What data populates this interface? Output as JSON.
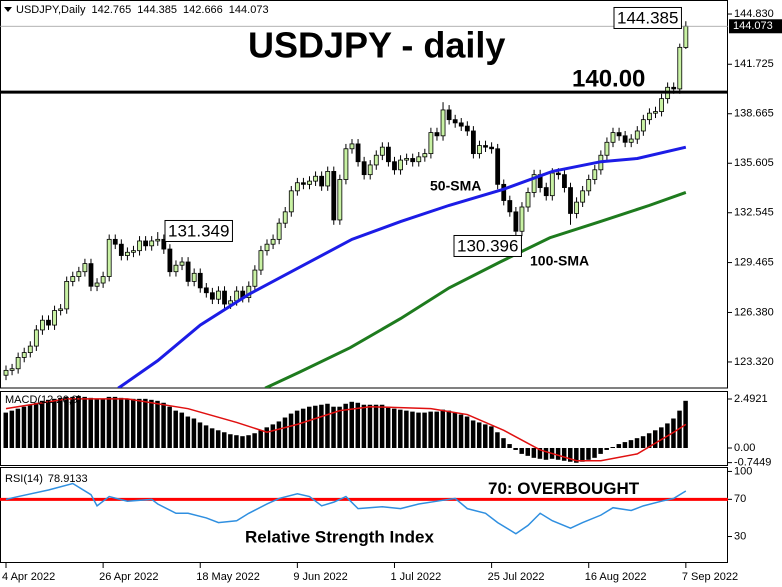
{
  "chart_data": [
    {
      "type": "candlestick",
      "symbol": "USDJPY,Daily",
      "title": "USDJPY - daily",
      "bull_color": "#c9f2a4",
      "bear_color": "#000000",
      "candles": [
        [
          122.5,
          123.1,
          122.2,
          122.8
        ],
        [
          122.8,
          123.2,
          122.5,
          122.9
        ],
        [
          122.9,
          123.9,
          122.6,
          123.6
        ],
        [
          123.6,
          124.2,
          123.3,
          123.9
        ],
        [
          123.9,
          124.6,
          123.6,
          124.3
        ],
        [
          124.3,
          125.6,
          124.0,
          125.3
        ],
        [
          125.3,
          126.2,
          125.0,
          125.9
        ],
        [
          125.9,
          126.2,
          125.3,
          125.6
        ],
        [
          125.6,
          126.8,
          125.3,
          126.5
        ],
        [
          126.5,
          126.9,
          126.2,
          126.6
        ],
        [
          126.6,
          128.6,
          126.3,
          128.3
        ],
        [
          128.3,
          128.9,
          128.0,
          128.6
        ],
        [
          128.6,
          129.2,
          128.3,
          128.9
        ],
        [
          128.9,
          129.7,
          128.6,
          129.4
        ],
        [
          129.4,
          129.7,
          127.7,
          128.0
        ],
        [
          128.0,
          128.5,
          127.7,
          128.2
        ],
        [
          128.2,
          128.9,
          127.9,
          128.6
        ],
        [
          128.6,
          131.2,
          128.3,
          130.9
        ],
        [
          130.9,
          131.2,
          130.3,
          130.6
        ],
        [
          130.6,
          130.9,
          129.6,
          129.9
        ],
        [
          129.9,
          130.4,
          129.6,
          130.1
        ],
        [
          130.1,
          130.5,
          129.8,
          130.2
        ],
        [
          130.2,
          131.1,
          129.9,
          130.8
        ],
        [
          130.8,
          131.1,
          130.2,
          130.5
        ],
        [
          130.5,
          131.1,
          130.2,
          130.8
        ],
        [
          130.8,
          131.349,
          130.5,
          130.9
        ],
        [
          130.9,
          131.2,
          130.0,
          130.3
        ],
        [
          130.3,
          130.6,
          128.6,
          128.9
        ],
        [
          128.9,
          129.6,
          128.6,
          129.3
        ],
        [
          129.3,
          129.8,
          129.0,
          129.5
        ],
        [
          129.5,
          129.8,
          128.0,
          128.3
        ],
        [
          128.3,
          129.1,
          128.0,
          128.8
        ],
        [
          128.8,
          129.1,
          127.6,
          127.9
        ],
        [
          127.9,
          128.2,
          127.3,
          127.6
        ],
        [
          127.6,
          127.9,
          126.9,
          127.2
        ],
        [
          127.2,
          128.0,
          126.9,
          127.7
        ],
        [
          127.7,
          128.0,
          126.6,
          126.9
        ],
        [
          126.9,
          127.4,
          126.6,
          127.1
        ],
        [
          127.1,
          128.0,
          126.8,
          127.7
        ],
        [
          127.7,
          128.0,
          127.0,
          127.3
        ],
        [
          127.3,
          128.3,
          127.0,
          128.0
        ],
        [
          128.0,
          129.3,
          127.7,
          129.0
        ],
        [
          129.0,
          130.5,
          128.7,
          130.2
        ],
        [
          130.2,
          130.9,
          129.9,
          130.6
        ],
        [
          130.6,
          131.2,
          130.3,
          130.9
        ],
        [
          130.9,
          132.2,
          130.6,
          131.9
        ],
        [
          131.9,
          132.9,
          131.6,
          132.6
        ],
        [
          132.6,
          134.2,
          132.3,
          133.9
        ],
        [
          133.9,
          134.7,
          133.6,
          134.4
        ],
        [
          134.4,
          134.7,
          134.0,
          134.3
        ],
        [
          134.3,
          134.8,
          134.0,
          134.5
        ],
        [
          134.5,
          135.1,
          134.2,
          134.8
        ],
        [
          134.8,
          135.1,
          133.9,
          134.2
        ],
        [
          134.2,
          135.4,
          133.9,
          135.1
        ],
        [
          135.1,
          135.4,
          131.8,
          132.1
        ],
        [
          132.1,
          134.9,
          131.8,
          134.6
        ],
        [
          134.6,
          136.8,
          134.3,
          136.5
        ],
        [
          136.5,
          137.1,
          136.2,
          136.8
        ],
        [
          136.8,
          137.1,
          135.4,
          135.7
        ],
        [
          135.7,
          136.0,
          134.6,
          134.9
        ],
        [
          134.9,
          135.8,
          134.6,
          135.5
        ],
        [
          135.5,
          136.4,
          135.2,
          136.1
        ],
        [
          136.1,
          136.9,
          135.8,
          136.6
        ],
        [
          136.6,
          136.9,
          135.4,
          135.7
        ],
        [
          135.7,
          136.0,
          134.9,
          135.2
        ],
        [
          135.2,
          136.1,
          134.9,
          135.8
        ],
        [
          135.8,
          136.2,
          135.5,
          135.9
        ],
        [
          135.9,
          136.2,
          135.4,
          135.7
        ],
        [
          135.7,
          136.3,
          135.4,
          136.0
        ],
        [
          136.0,
          136.5,
          135.7,
          136.2
        ],
        [
          136.2,
          137.8,
          135.9,
          137.5
        ],
        [
          137.5,
          137.8,
          137.0,
          137.3
        ],
        [
          137.3,
          139.38,
          137.0,
          138.9
        ],
        [
          138.9,
          139.2,
          138.0,
          138.3
        ],
        [
          138.3,
          138.6,
          137.8,
          138.1
        ],
        [
          138.1,
          138.4,
          137.6,
          137.9
        ],
        [
          137.9,
          138.2,
          137.3,
          137.6
        ],
        [
          137.6,
          137.9,
          135.9,
          136.2
        ],
        [
          136.2,
          137.0,
          135.9,
          136.7
        ],
        [
          136.7,
          137.0,
          136.3,
          136.6
        ],
        [
          136.6,
          136.9,
          136.2,
          136.5
        ],
        [
          136.5,
          136.8,
          134.0,
          134.3
        ],
        [
          134.3,
          134.6,
          133.0,
          133.3
        ],
        [
          133.3,
          133.6,
          132.3,
          132.6
        ],
        [
          132.6,
          132.9,
          130.396,
          131.4
        ],
        [
          131.4,
          133.2,
          131.1,
          132.9
        ],
        [
          132.9,
          134.1,
          132.6,
          133.8
        ],
        [
          133.8,
          135.2,
          133.5,
          134.9
        ],
        [
          134.9,
          135.2,
          133.8,
          134.1
        ],
        [
          134.1,
          134.4,
          133.3,
          133.6
        ],
        [
          133.6,
          135.3,
          133.3,
          135.0
        ],
        [
          135.0,
          135.3,
          134.6,
          134.9
        ],
        [
          134.9,
          135.2,
          133.8,
          134.1
        ],
        [
          134.1,
          134.4,
          131.8,
          132.5
        ],
        [
          132.5,
          133.5,
          132.2,
          133.2
        ],
        [
          133.2,
          134.2,
          132.9,
          133.9
        ],
        [
          133.9,
          134.9,
          133.6,
          134.6
        ],
        [
          134.6,
          135.5,
          134.3,
          135.2
        ],
        [
          135.2,
          136.4,
          134.9,
          136.1
        ],
        [
          136.1,
          137.2,
          135.8,
          136.9
        ],
        [
          136.9,
          137.8,
          136.6,
          137.5
        ],
        [
          137.5,
          137.8,
          137.0,
          137.3
        ],
        [
          137.3,
          137.6,
          136.6,
          136.9
        ],
        [
          136.9,
          137.4,
          136.6,
          137.1
        ],
        [
          137.1,
          137.9,
          136.8,
          137.6
        ],
        [
          137.6,
          138.6,
          137.3,
          138.3
        ],
        [
          138.3,
          139.0,
          138.0,
          138.7
        ],
        [
          138.7,
          139.1,
          138.4,
          138.8
        ],
        [
          138.8,
          139.9,
          138.5,
          139.6
        ],
        [
          139.6,
          140.6,
          139.3,
          140.3
        ],
        [
          140.3,
          140.6,
          139.9,
          140.2
        ],
        [
          140.2,
          143.0,
          139.9,
          142.77
        ],
        [
          142.765,
          144.385,
          142.666,
          144.073
        ]
      ],
      "series": [
        {
          "name": "50-SMA",
          "color": "#1c1ce6",
          "x": [
            18.5,
            25,
            32,
            40,
            48,
            57,
            65,
            73,
            82,
            90,
            98,
            104,
            112
          ],
          "values": [
            121.7,
            123.4,
            125.6,
            127.5,
            129.1,
            130.9,
            132.0,
            133.0,
            134.0,
            135.1,
            135.7,
            135.9,
            136.6
          ]
        },
        {
          "name": "100-SMA",
          "color": "#1e7b1e",
          "x": [
            42.7,
            48.4,
            56.7,
            65,
            73,
            81.4,
            89.6,
            97.9,
            106,
            112
          ],
          "values": [
            121.7,
            122.7,
            124.2,
            126.0,
            127.9,
            129.5,
            131.0,
            132.0,
            133.0,
            133.8
          ]
        }
      ],
      "levels": [
        {
          "value": 140,
          "label": "140.00",
          "color": "#000000"
        }
      ],
      "ylim": [
        121.71,
        145.45
      ],
      "yticks": [
        {
          "value": 123.32,
          "label": "123.320"
        },
        {
          "value": 126.38,
          "label": "126.380"
        },
        129.465,
        132.545,
        135.605,
        138.665,
        141.725,
        {
          "value": 144.83,
          "label": "144.830"
        }
      ],
      "xticks": [
        {
          "value": 0,
          "label": "4 Apr 2022"
        },
        {
          "value": 16,
          "label": "26 Apr 2022"
        },
        {
          "value": 32,
          "label": "18 May 2022"
        },
        {
          "value": 48,
          "label": "9 Jun 2022"
        },
        {
          "value": 64,
          "label": "1 Jul 2022"
        },
        {
          "value": 80,
          "label": "25 Jul 2022"
        },
        {
          "value": 96,
          "label": "16 Aug 2022"
        },
        {
          "value": 112,
          "label": "7 Sep 2022"
        }
      ]
    },
    {
      "type": "macd",
      "title": "MACD(12,26,9)",
      "histogram": {
        "color": "#000000",
        "values": [
          1.8,
          1.9,
          2.0,
          2.1,
          2.2,
          2.3,
          2.4,
          2.45,
          2.5,
          2.55,
          2.6,
          2.6,
          2.65,
          2.6,
          2.55,
          2.5,
          2.5,
          2.6,
          2.6,
          2.55,
          2.5,
          2.5,
          2.5,
          2.5,
          2.45,
          2.4,
          2.3,
          2.1,
          1.9,
          1.8,
          1.6,
          1.5,
          1.3,
          1.15,
          1.0,
          0.9,
          0.8,
          0.7,
          0.65,
          0.6,
          0.65,
          0.75,
          0.9,
          1.05,
          1.2,
          1.35,
          1.55,
          1.75,
          1.9,
          2.0,
          2.1,
          2.15,
          2.2,
          2.25,
          2.1,
          2.1,
          2.25,
          2.35,
          2.3,
          2.2,
          2.2,
          2.2,
          2.2,
          2.1,
          2.0,
          1.95,
          1.9,
          1.85,
          1.8,
          1.8,
          1.85,
          1.85,
          1.95,
          1.9,
          1.8,
          1.7,
          1.6,
          1.4,
          1.3,
          1.2,
          1.1,
          0.8,
          0.5,
          0.2,
          -0.1,
          -0.3,
          -0.4,
          -0.5,
          -0.55,
          -0.6,
          -0.55,
          -0.6,
          -0.65,
          -0.7,
          -0.75,
          -0.7,
          -0.6,
          -0.5,
          -0.3,
          -0.1,
          0.05,
          0.2,
          0.3,
          0.4,
          0.5,
          0.6,
          0.75,
          0.9,
          1.05,
          1.25,
          1.5,
          1.9,
          2.4
        ]
      },
      "signal": {
        "color": "#e01010",
        "x": [
          0,
          10,
          20,
          30,
          38,
          43,
          48,
          55,
          60,
          70,
          76,
          82,
          88,
          94,
          98,
          104,
          110,
          112
        ],
        "values": [
          2.0,
          2.5,
          2.5,
          2.0,
          1.3,
          0.8,
          1.2,
          1.9,
          2.1,
          2.0,
          1.7,
          0.9,
          -0.1,
          -0.65,
          -0.65,
          -0.3,
          0.8,
          1.2
        ]
      },
      "ylim": [
        -0.865,
        2.848
      ],
      "yticks": [
        2.4921,
        {
          "value": 0,
          "label": "0.00"
        },
        -0.7449
      ]
    },
    {
      "type": "line",
      "title": "RSI(14)",
      "annotation": "Relative Strength Index",
      "annotation_color": "#2f8fe0",
      "color": "#2f8fe0",
      "x": [
        0,
        2,
        7,
        11,
        14,
        15,
        17,
        20,
        24,
        25,
        28,
        30,
        33,
        35,
        38,
        40,
        43,
        45,
        48,
        50,
        52,
        54,
        56,
        58,
        62,
        65,
        68,
        71,
        74,
        76,
        79,
        81,
        84,
        86,
        88,
        90,
        93,
        95,
        98,
        100,
        103,
        105,
        108,
        110,
        112
      ],
      "values": [
        70,
        73,
        80,
        87,
        75,
        63,
        73,
        68,
        70,
        65,
        55,
        55,
        50,
        45,
        47,
        55,
        65,
        71,
        76,
        73,
        63,
        67,
        73,
        60,
        62,
        60,
        65,
        68,
        71,
        60,
        55,
        45,
        33,
        42,
        55,
        47,
        39,
        45,
        53,
        61,
        58,
        63,
        68,
        71,
        78.9133
      ],
      "levels": [
        {
          "value": 70,
          "label": "70: OVERBOUGHT",
          "color": "#ff0000"
        }
      ],
      "ylim": [
        2.6,
        103.7
      ],
      "yticks": [
        100,
        70,
        30
      ]
    }
  ]
}
